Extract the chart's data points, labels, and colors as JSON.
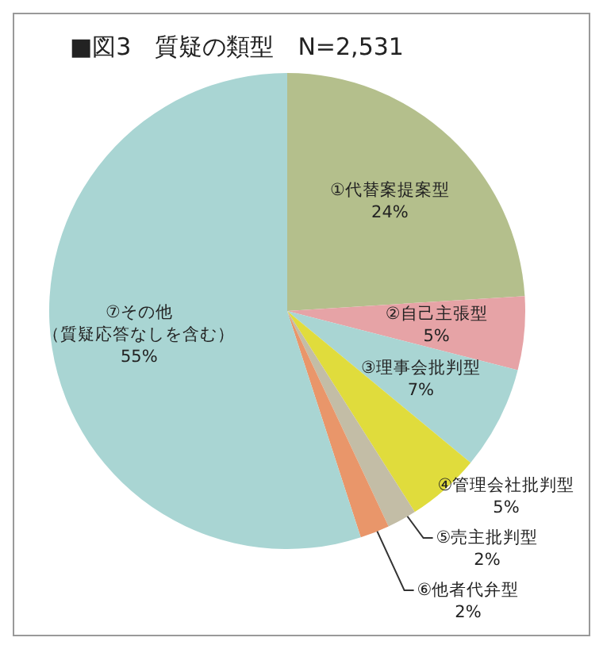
{
  "chart_data": {
    "type": "pie",
    "title": "■図3　質疑の類型　N=2,531",
    "categories": [
      "①代替案提案型",
      "②自己主張型",
      "③理事会批判型",
      "④管理会社批判型",
      "⑤売主批判型",
      "⑥他者代弁型",
      "⑦その他（質疑応答なしを含む）"
    ],
    "values": [
      24,
      5,
      7,
      5,
      2,
      2,
      55
    ],
    "value_labels": [
      "24%",
      "5%",
      "7%",
      "5%",
      "2%",
      "2%",
      "55%"
    ],
    "colors": [
      "#b4bf8c",
      "#e6a3a6",
      "#a9d5d3",
      "#e0dc3c",
      "#c3bda6",
      "#e9966a",
      "#a9d5d3"
    ],
    "legend": false
  }
}
